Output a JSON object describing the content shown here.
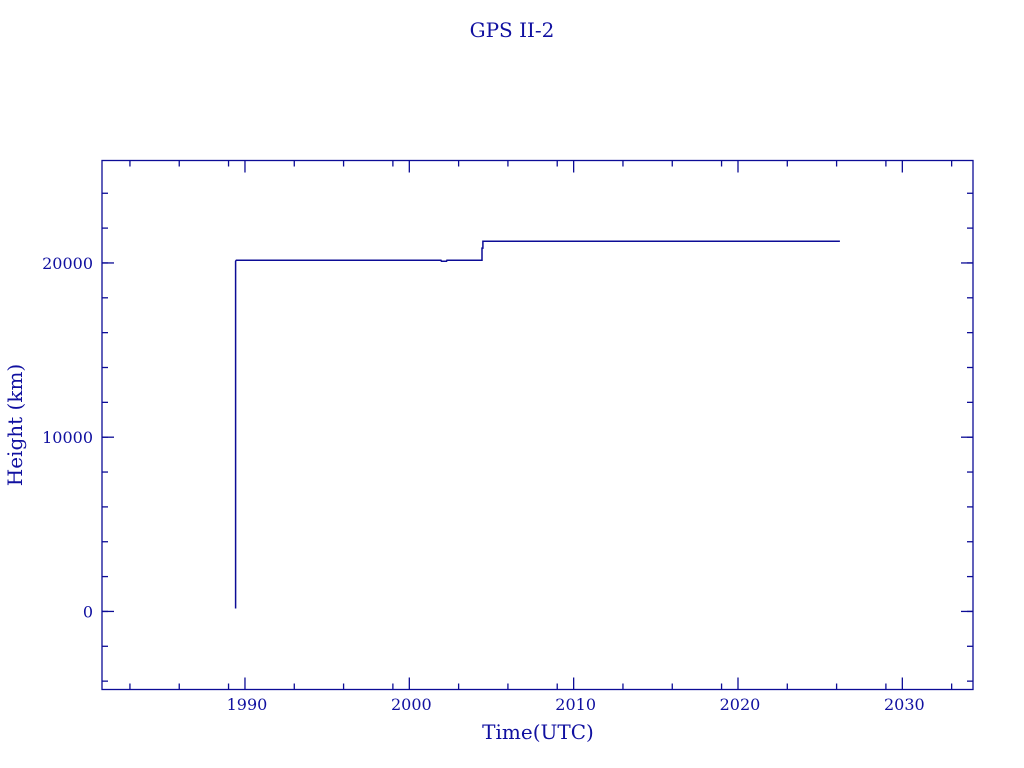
{
  "chart_data": {
    "type": "line",
    "title": "GPS II-2",
    "xlabel": "Time(UTC)",
    "ylabel": "Height (km)",
    "xlim": [
      1981.3,
      2034.3
    ],
    "ylim": [
      -4480,
      25880
    ],
    "x_ticks": [
      1990,
      2000,
      2010,
      2020,
      2030
    ],
    "x_tick_labels": [
      "1990",
      "2000",
      "2010",
      "2020",
      "2030"
    ],
    "x_minor_step": 3,
    "y_ticks": [
      0,
      10000,
      20000
    ],
    "y_tick_labels": [
      "0",
      "10000",
      "20000"
    ],
    "y_minor_step": 2000,
    "grid": false,
    "color": "#0c0c96",
    "series": [
      {
        "x": [
          1989.43,
          1989.43,
          1989.47,
          2001.93,
          2001.95,
          2002.27,
          2002.29,
          2004.42,
          2004.42,
          2004.48,
          2004.48,
          2026.2
        ],
        "y": [
          170,
          20100,
          20155,
          20155,
          20100,
          20100,
          20155,
          20155,
          20850,
          20850,
          21250,
          21250
        ]
      }
    ]
  }
}
